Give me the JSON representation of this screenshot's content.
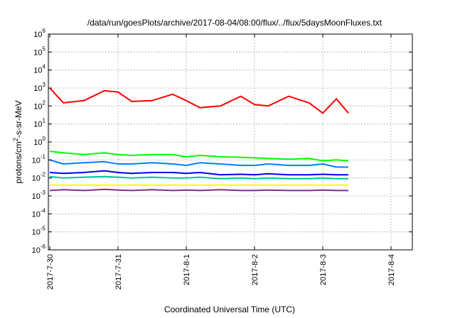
{
  "chart_data": {
    "type": "line",
    "title": "/data/run/goesPlots/archive/2017-08-04/08:00/flux/../flux/5daysMoonFluxes.txt",
    "xlabel": "Coordinated Universal Time (UTC)",
    "ylabel_prefix": "protons/cm",
    "ylabel_sup": "2",
    "ylabel_suffix": "-s-sr-MeV",
    "y_scale": "log",
    "ylim": [
      1e-06,
      1000000.0
    ],
    "xlim": [
      "2017-07-30",
      "2017-08-04 09:00"
    ],
    "grid": true,
    "legend": "none",
    "x_ticks": [
      "2017-7-30",
      "2017-7-31",
      "2017-8-1",
      "2017-8-2",
      "2017-8-3",
      "2017-8-4"
    ],
    "y_ticks": [
      {
        "base": "10",
        "exp": "6"
      },
      {
        "base": "10",
        "exp": "5"
      },
      {
        "base": "10",
        "exp": "4"
      },
      {
        "base": "10",
        "exp": "3"
      },
      {
        "base": "10",
        "exp": "2"
      },
      {
        "base": "10",
        "exp": "1"
      },
      {
        "base": "10",
        "exp": "0"
      },
      {
        "base": "10",
        "exp": "-1"
      },
      {
        "base": "10",
        "exp": "-2"
      },
      {
        "base": "10",
        "exp": "-3"
      },
      {
        "base": "10",
        "exp": "-4"
      },
      {
        "base": "10",
        "exp": "-5"
      },
      {
        "base": "10",
        "exp": "-6"
      }
    ],
    "x_days": [
      0,
      0.2,
      0.5,
      0.8,
      1.0,
      1.2,
      1.5,
      1.8,
      2.0,
      2.2,
      2.5,
      2.8,
      3.0,
      3.2,
      3.5,
      3.8,
      4.0,
      4.2,
      4.375
    ],
    "series": [
      {
        "color": "#ff0000",
        "values": [
          1000,
          150,
          200,
          700,
          600,
          180,
          200,
          450,
          200,
          80,
          100,
          350,
          120,
          100,
          350,
          150,
          40,
          250,
          40
        ]
      },
      {
        "color": "#00ff00",
        "values": [
          0.3,
          0.25,
          0.2,
          0.25,
          0.2,
          0.18,
          0.2,
          0.2,
          0.15,
          0.18,
          0.15,
          0.14,
          0.13,
          0.12,
          0.11,
          0.12,
          0.09,
          0.1,
          0.09
        ]
      },
      {
        "color": "#0080ff",
        "values": [
          0.1,
          0.06,
          0.07,
          0.08,
          0.06,
          0.06,
          0.07,
          0.06,
          0.05,
          0.07,
          0.06,
          0.05,
          0.05,
          0.06,
          0.05,
          0.05,
          0.06,
          0.04,
          0.04
        ]
      },
      {
        "color": "#0000ff",
        "values": [
          0.02,
          0.018,
          0.02,
          0.025,
          0.02,
          0.018,
          0.02,
          0.02,
          0.018,
          0.02,
          0.015,
          0.016,
          0.015,
          0.017,
          0.015,
          0.015,
          0.016,
          0.015,
          0.015
        ]
      },
      {
        "color": "#00c8a0",
        "values": [
          0.012,
          0.01,
          0.011,
          0.012,
          0.011,
          0.01,
          0.011,
          0.01,
          0.01,
          0.011,
          0.009,
          0.01,
          0.009,
          0.01,
          0.009,
          0.009,
          0.01,
          0.009,
          0.009
        ]
      },
      {
        "color": "#ffff00",
        "values": [
          0.004,
          0.004,
          0.004,
          0.004,
          0.004,
          0.004,
          0.004,
          0.004,
          0.004,
          0.004,
          0.004,
          0.004,
          0.004,
          0.004,
          0.004,
          0.004,
          0.004,
          0.004,
          0.004
        ]
      },
      {
        "color": "#803080",
        "values": [
          0.002,
          0.0022,
          0.002,
          0.0023,
          0.0021,
          0.002,
          0.0022,
          0.002,
          0.0021,
          0.002,
          0.0022,
          0.002,
          0.002,
          0.0021,
          0.002,
          0.002,
          0.0021,
          0.002,
          0.002
        ]
      }
    ]
  }
}
